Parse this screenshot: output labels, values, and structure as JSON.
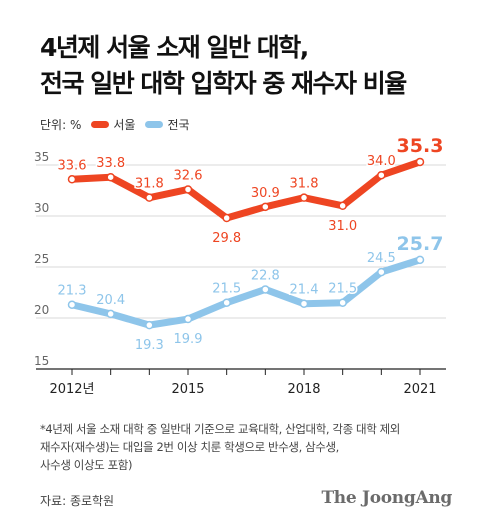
{
  "title_line1": "4년제 서울 소재 일반 대학,",
  "title_line2": "전국 일반 대학 입학자 중 재수자 비율",
  "unit_label": "단위: %",
  "note_lines": [
    "*4년제 서울 소재 대학 중 일반대 기준으로 교육대학, 산업대학, 각종 대학 제외",
    "재수자(재수생)는 대입을 2번 이상 치룬 학생으로 반수생, 삼수생,",
    "사수생 이상도 포함)"
  ],
  "source": "자료: 종로학원",
  "publisher": "The JoongAng",
  "chart_data": {
    "type": "line",
    "x": [
      2012,
      2013,
      2014,
      2015,
      2016,
      2017,
      2018,
      2019,
      2020,
      2021
    ],
    "x_tick_labels": [
      {
        "x": 2012,
        "label": "2012년"
      },
      {
        "x": 2015,
        "label": "2015"
      },
      {
        "x": 2018,
        "label": "2018"
      },
      {
        "x": 2021,
        "label": "2021"
      }
    ],
    "ylim": [
      15,
      35
    ],
    "yticks": [
      15,
      20,
      25,
      30,
      35
    ],
    "grid": true,
    "legend": "top-left",
    "series": [
      {
        "name": "서울",
        "color": "#ee4522",
        "values": [
          33.6,
          33.8,
          31.8,
          32.6,
          29.8,
          30.9,
          31.8,
          31.0,
          34.0,
          35.3
        ],
        "labels": [
          "33.6",
          "33.8",
          "31.8",
          "32.6",
          "29.8",
          "30.9",
          "31.8",
          "31.0",
          "34.0",
          "35.3"
        ]
      },
      {
        "name": "전국",
        "color": "#8ec5ea",
        "values": [
          21.3,
          20.4,
          19.3,
          19.9,
          21.5,
          22.8,
          21.4,
          21.5,
          24.5,
          25.7
        ],
        "labels": [
          "21.3",
          "20.4",
          "19.3",
          "19.9",
          "21.5",
          "22.8",
          "21.4",
          "21.5",
          "24.5",
          "25.7"
        ]
      }
    ]
  }
}
